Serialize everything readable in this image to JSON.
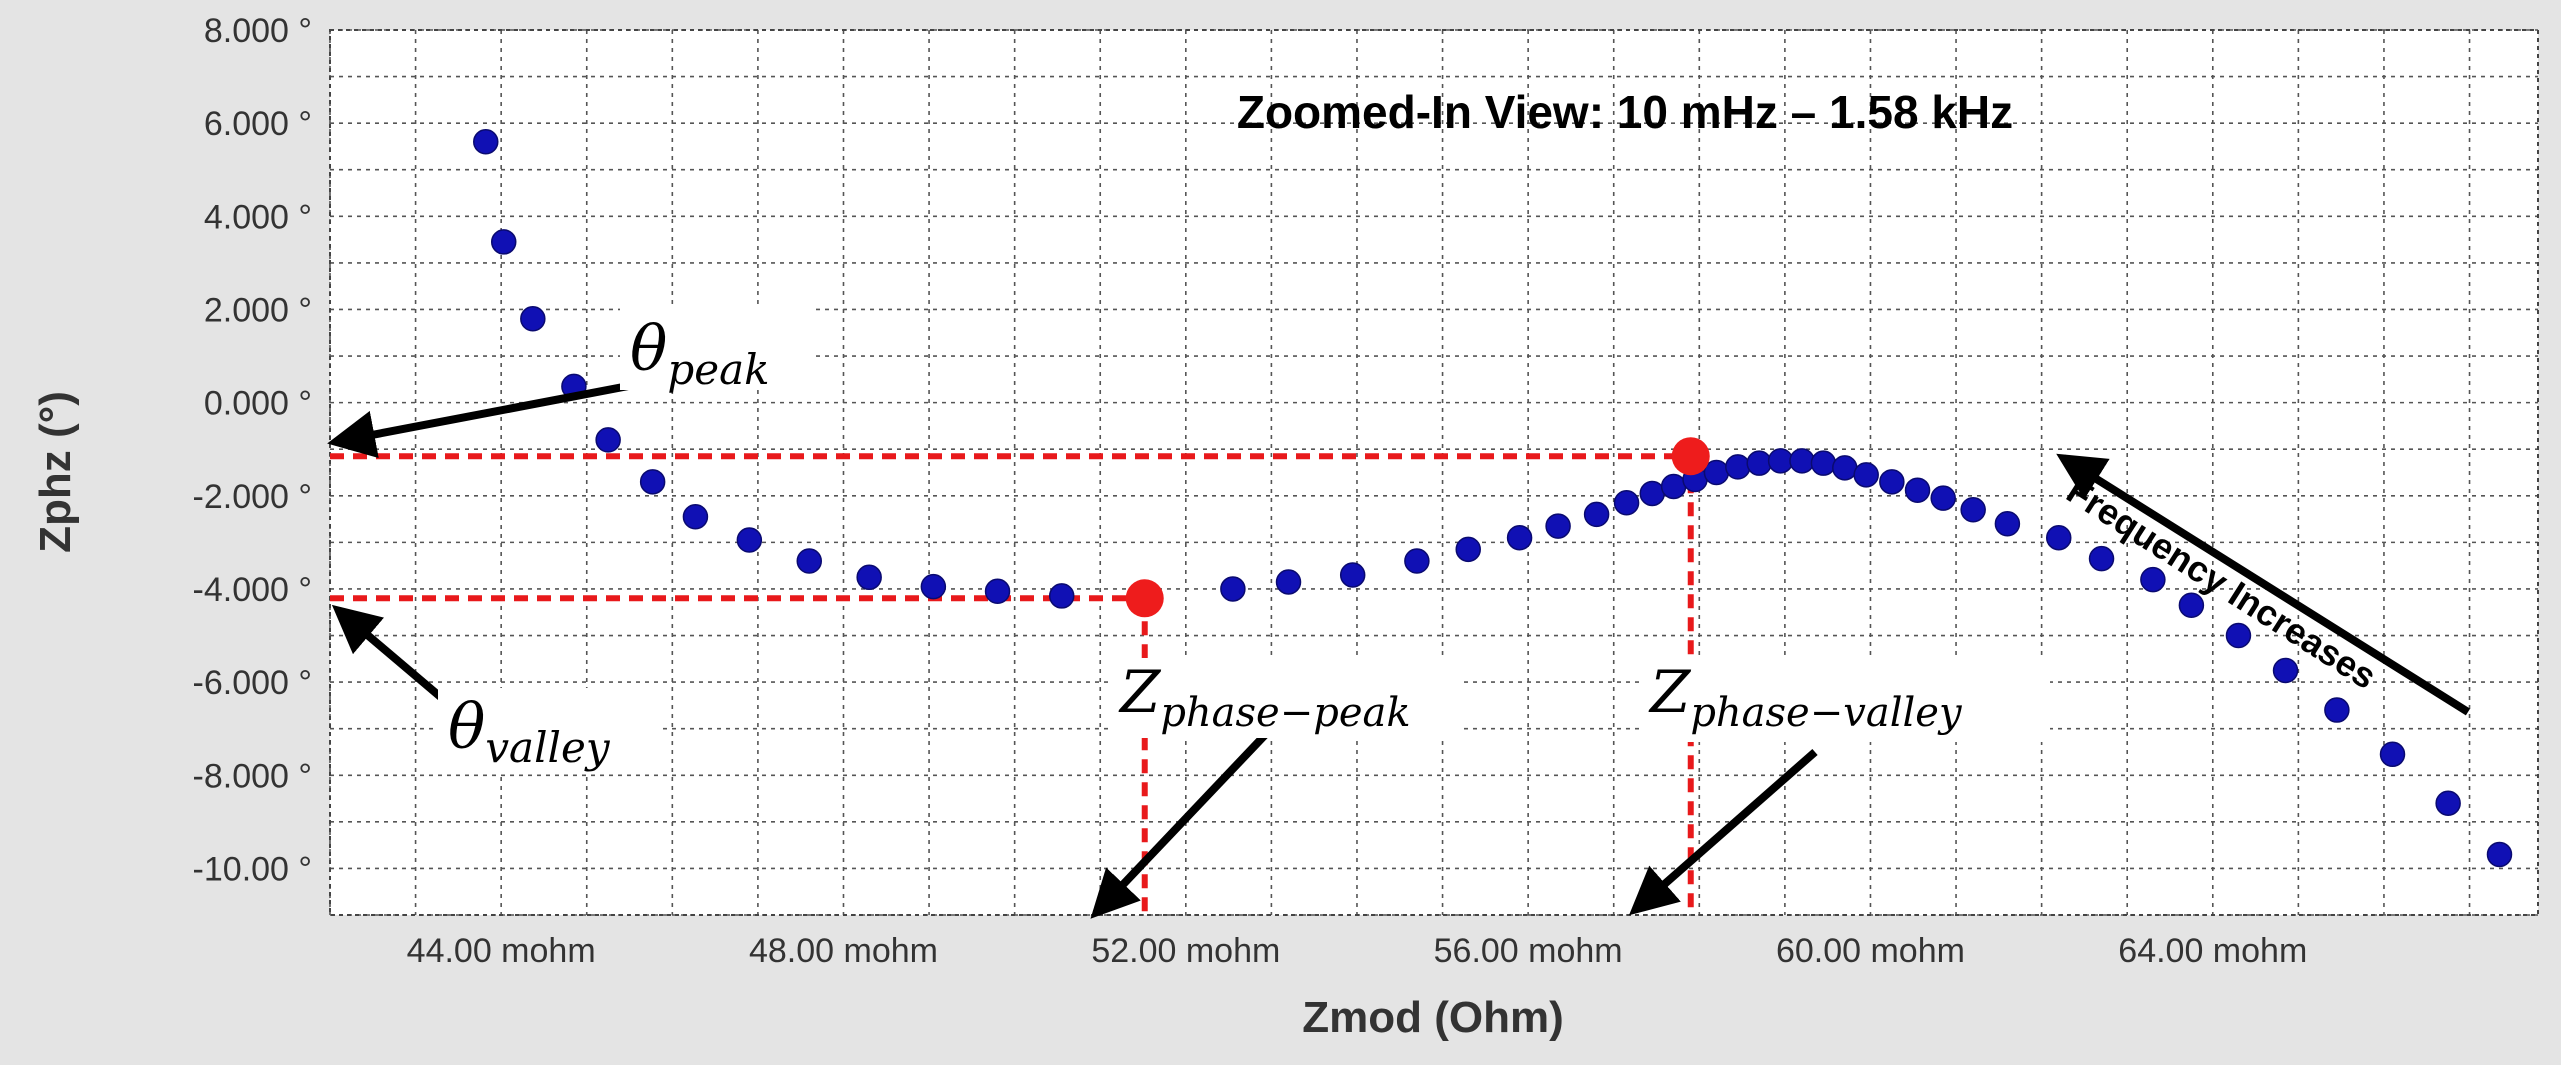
{
  "chart_data": {
    "type": "scatter",
    "title": "Zoomed-In View: 10 mHz – 1.58 kHz",
    "xlabel": "Zmod (Ohm)",
    "ylabel": "Zphz (°)",
    "xlim": [
      42.0,
      67.8
    ],
    "ylim": [
      -11.0,
      8.0
    ],
    "grid": true,
    "x_ticks": [
      {
        "value": 44,
        "label": "44.00 mohm"
      },
      {
        "value": 48,
        "label": "48.00 mohm"
      },
      {
        "value": 52,
        "label": "52.00 mohm"
      },
      {
        "value": 56,
        "label": "56.00 mohm"
      },
      {
        "value": 60,
        "label": "60.00 mohm"
      },
      {
        "value": 64,
        "label": "64.00 mohm"
      }
    ],
    "y_ticks": [
      {
        "value": 8,
        "label": "8.000 °"
      },
      {
        "value": 6,
        "label": "6.000 °"
      },
      {
        "value": 4,
        "label": "4.000 °"
      },
      {
        "value": 2,
        "label": "2.000 °"
      },
      {
        "value": 0,
        "label": "0.000 °"
      },
      {
        "value": -2,
        "label": "-2.000 °"
      },
      {
        "value": -4,
        "label": "-4.000 °"
      },
      {
        "value": -6,
        "label": "-6.000 °"
      },
      {
        "value": -8,
        "label": "-8.000 °"
      },
      {
        "value": -10,
        "label": "-10.00 °"
      }
    ],
    "series": [
      {
        "color": "#1010b4",
        "points": [
          [
            43.82,
            5.6
          ],
          [
            44.03,
            3.45
          ],
          [
            44.37,
            1.8
          ],
          [
            44.85,
            0.35
          ],
          [
            45.25,
            -0.8
          ],
          [
            45.77,
            -1.7
          ],
          [
            46.27,
            -2.45
          ],
          [
            46.9,
            -2.95
          ],
          [
            47.6,
            -3.4
          ],
          [
            48.3,
            -3.75
          ],
          [
            49.05,
            -3.95
          ],
          [
            49.8,
            -4.05
          ],
          [
            50.55,
            -4.15
          ],
          [
            51.55,
            -4.15
          ],
          [
            52.55,
            -4.0
          ],
          [
            53.2,
            -3.85
          ],
          [
            53.95,
            -3.7
          ],
          [
            54.7,
            -3.4
          ],
          [
            55.3,
            -3.15
          ],
          [
            55.9,
            -2.9
          ],
          [
            56.35,
            -2.65
          ],
          [
            56.8,
            -2.4
          ],
          [
            57.15,
            -2.15
          ],
          [
            57.45,
            -1.95
          ],
          [
            57.7,
            -1.8
          ],
          [
            57.95,
            -1.65
          ],
          [
            58.2,
            -1.5
          ],
          [
            58.45,
            -1.38
          ],
          [
            58.7,
            -1.3
          ],
          [
            58.95,
            -1.25
          ],
          [
            59.2,
            -1.25
          ],
          [
            59.45,
            -1.3
          ],
          [
            59.7,
            -1.4
          ],
          [
            59.95,
            -1.55
          ],
          [
            60.25,
            -1.7
          ],
          [
            60.55,
            -1.88
          ],
          [
            60.85,
            -2.05
          ],
          [
            61.2,
            -2.3
          ],
          [
            61.6,
            -2.6
          ],
          [
            62.2,
            -2.9
          ],
          [
            62.7,
            -3.35
          ],
          [
            63.3,
            -3.8
          ],
          [
            63.75,
            -4.35
          ],
          [
            64.3,
            -5.0
          ],
          [
            64.85,
            -5.75
          ],
          [
            65.45,
            -6.6
          ],
          [
            66.1,
            -7.55
          ],
          [
            66.75,
            -8.6
          ],
          [
            67.35,
            -9.7
          ]
        ]
      }
    ],
    "highlighted_points": [
      {
        "x": 51.52,
        "y": -4.2,
        "color": "#ee1c1c"
      },
      {
        "x": 57.9,
        "y": -1.15,
        "color": "#ee1c1c"
      }
    ],
    "reference_lines_color": "#e8191b",
    "annotations": [
      {
        "main": "θ",
        "sub": "peak"
      },
      {
        "main": "θ",
        "sub": "valley"
      },
      {
        "main": "Z",
        "sub": "phase−peak"
      },
      {
        "main": "Z",
        "sub": "phase−valley"
      },
      {
        "text": "Frequency Increases"
      }
    ]
  }
}
